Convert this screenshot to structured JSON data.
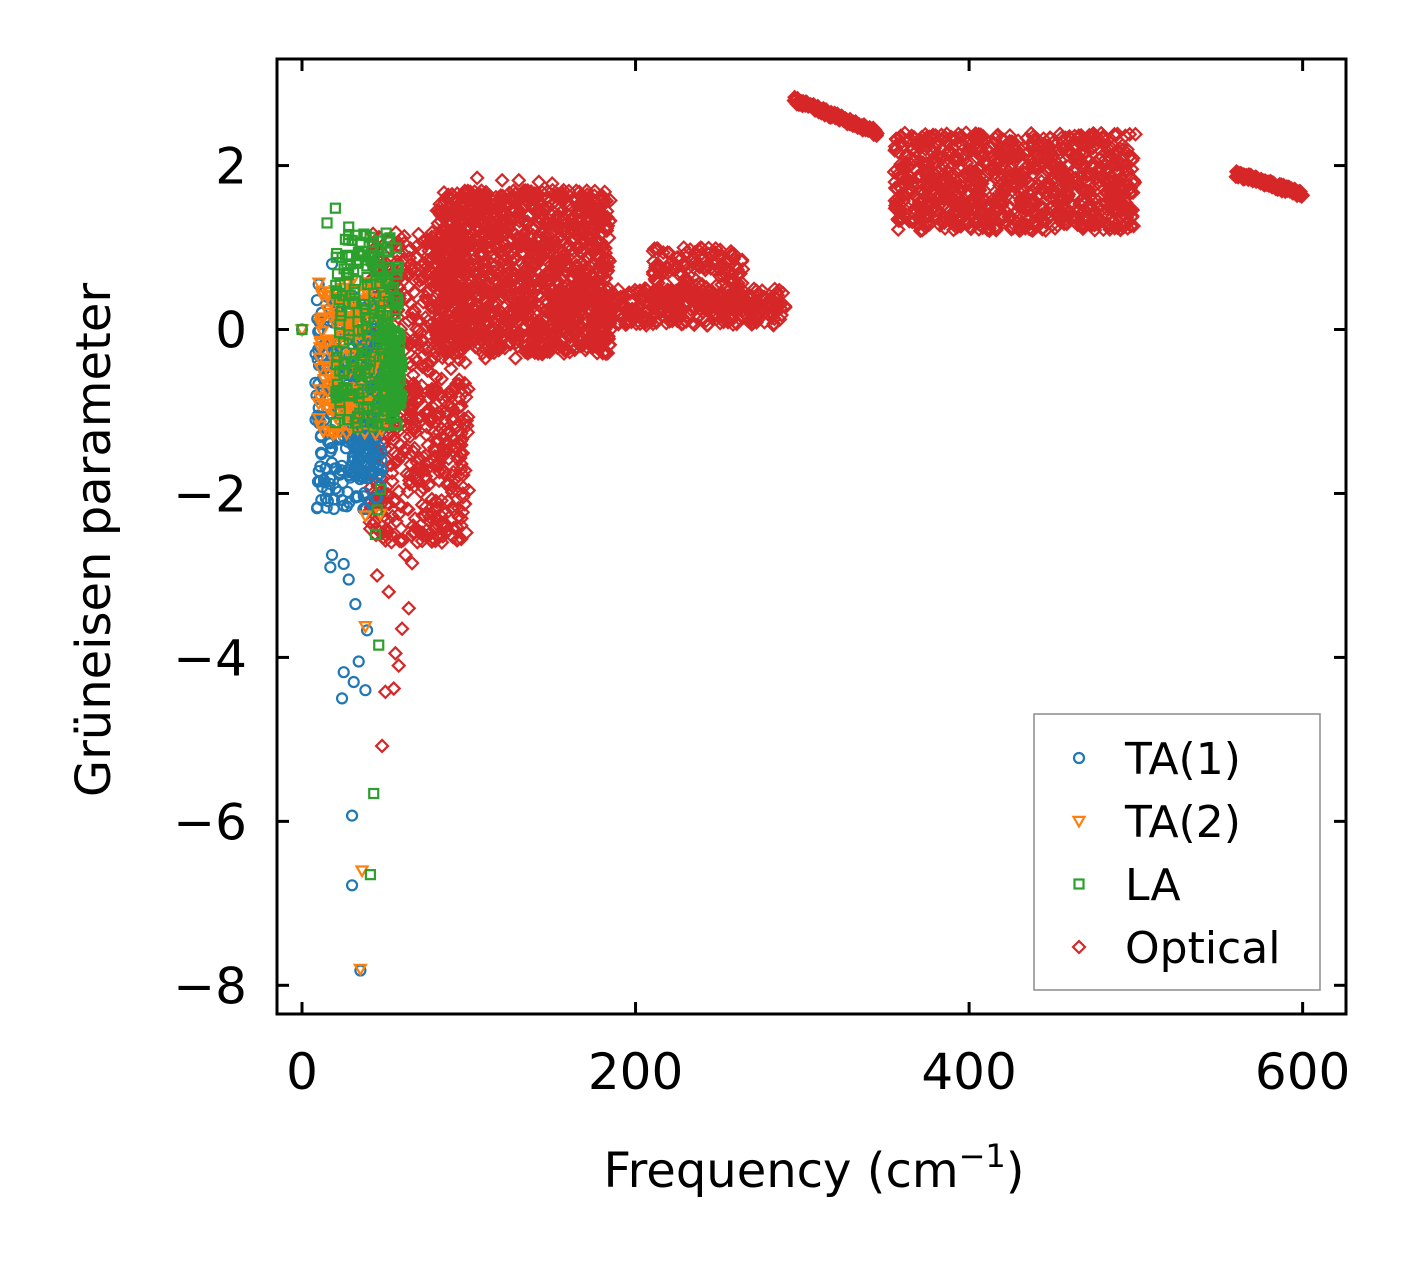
{
  "chart_data": {
    "type": "scatter",
    "title": "",
    "xlabel_main": "Frequency (cm",
    "xlabel_sup": "−1",
    "xlabel_close": ")",
    "ylabel": "Grüneisen parameter",
    "xlim": [
      -15,
      626
    ],
    "ylim": [
      -8.35,
      3.3
    ],
    "xticks": [
      0,
      200,
      400,
      600
    ],
    "xtick_labels": [
      "0",
      "200",
      "400",
      "600"
    ],
    "yticks": [
      2,
      0,
      -2,
      -4,
      -6,
      -8
    ],
    "ytick_labels": [
      "2",
      "0",
      "−2",
      "−4",
      "−6",
      "−8"
    ],
    "legend_position": "lower-right",
    "series": [
      {
        "name": "TA(1)",
        "color": "#1f77b4",
        "marker": "circle",
        "scatter_regions": [
          {
            "x": [
              8,
              48
            ],
            "y": [
              -2.2,
              0.4
            ],
            "n": 260
          },
          {
            "x": [
              30,
              48
            ],
            "y": [
              -1.8,
              -0.4
            ],
            "n": 140
          }
        ],
        "points": [
          [
            0,
            0
          ],
          [
            10,
            0.55
          ],
          [
            18,
            0.8
          ],
          [
            12,
            -0.35
          ],
          [
            14,
            -0.45
          ],
          [
            8,
            -0.65
          ],
          [
            11,
            -1.67
          ],
          [
            18,
            -1.45
          ],
          [
            22,
            -1.98
          ],
          [
            25,
            -2.15
          ],
          [
            32,
            -2.05
          ],
          [
            9,
            -2.18
          ],
          [
            18,
            -2.75
          ],
          [
            17,
            -2.9
          ],
          [
            25,
            -2.86
          ],
          [
            28,
            -3.05
          ],
          [
            32,
            -3.35
          ],
          [
            39,
            -3.67
          ],
          [
            34,
            -4.05
          ],
          [
            25,
            -4.18
          ],
          [
            31,
            -4.3
          ],
          [
            38,
            -4.4
          ],
          [
            24,
            -4.5
          ],
          [
            30,
            -5.93
          ],
          [
            30,
            -6.78
          ],
          [
            35,
            -7.82
          ]
        ]
      },
      {
        "name": "TA(2)",
        "color": "#ff7f0e",
        "marker": "triangle-down",
        "scatter_regions": [
          {
            "x": [
              10,
              52
            ],
            "y": [
              -1.3,
              0.6
            ],
            "n": 180
          }
        ],
        "points": [
          [
            0,
            0
          ],
          [
            20,
            0.48
          ],
          [
            16,
            0.2
          ],
          [
            10,
            -0.9
          ],
          [
            20,
            -0.9
          ],
          [
            38,
            -2.27
          ],
          [
            47,
            -2.25
          ],
          [
            38,
            -3.62
          ],
          [
            36,
            -6.6
          ],
          [
            35,
            -7.8
          ]
        ]
      },
      {
        "name": "LA",
        "color": "#2ca02c",
        "marker": "square",
        "scatter_regions": [
          {
            "x": [
              20,
              58
            ],
            "y": [
              -1.2,
              1.2
            ],
            "n": 200
          },
          {
            "x": [
              48,
              60
            ],
            "y": [
              -1.0,
              0.0
            ],
            "n": 100
          }
        ],
        "points": [
          [
            0,
            0
          ],
          [
            20,
            1.48
          ],
          [
            15,
            1.3
          ],
          [
            28,
            1.25
          ],
          [
            32,
            1.15
          ],
          [
            26,
            1.1
          ],
          [
            35,
            0.9
          ],
          [
            29,
            0.8
          ],
          [
            47,
            -1.95
          ],
          [
            45,
            -2.2
          ],
          [
            44,
            -2.5
          ],
          [
            46,
            -3.85
          ],
          [
            43,
            -5.66
          ],
          [
            41,
            -6.65
          ]
        ]
      },
      {
        "name": "Optical",
        "color": "#d62728",
        "marker": "diamond",
        "scatter_regions": [
          {
            "x": [
              40,
              100
            ],
            "y": [
              -2.6,
              1.2
            ],
            "n": 700
          },
          {
            "x": [
              80,
              185
            ],
            "y": [
              -0.3,
              1.7
            ],
            "n": 1400
          },
          {
            "x": [
              150,
              290
            ],
            "y": [
              0.05,
              0.5
            ],
            "n": 400
          },
          {
            "x": [
              210,
              265
            ],
            "y": [
              0.2,
              1.0
            ],
            "n": 220
          },
          {
            "x": [
              355,
              500
            ],
            "y": [
              1.2,
              2.4
            ],
            "n": 1000
          }
        ],
        "lines": [
          {
            "x": [
              295,
              345
            ],
            "y": [
              2.8,
              2.4
            ],
            "n": 120
          },
          {
            "x": [
              560,
              600
            ],
            "y": [
              1.9,
              1.65
            ],
            "n": 120
          }
        ],
        "points": [
          [
            48,
            -5.08
          ],
          [
            45,
            -3.0
          ],
          [
            58,
            -4.1
          ],
          [
            55,
            -4.38
          ],
          [
            50,
            -4.42
          ],
          [
            52,
            -3.2
          ],
          [
            62,
            -2.75
          ],
          [
            66,
            -2.85
          ],
          [
            60,
            -3.65
          ],
          [
            56,
            -3.95
          ],
          [
            64,
            -3.4
          ],
          [
            105,
            1.85
          ],
          [
            130,
            1.82
          ],
          [
            120,
            1.82
          ],
          [
            142,
            1.8
          ],
          [
            150,
            1.78
          ],
          [
            110,
            -0.35
          ],
          [
            128,
            -0.35
          ],
          [
            118,
            -0.25
          ],
          [
            150,
            -0.2
          ],
          [
            140,
            -0.15
          ],
          [
            165,
            0.0
          ]
        ]
      }
    ]
  }
}
